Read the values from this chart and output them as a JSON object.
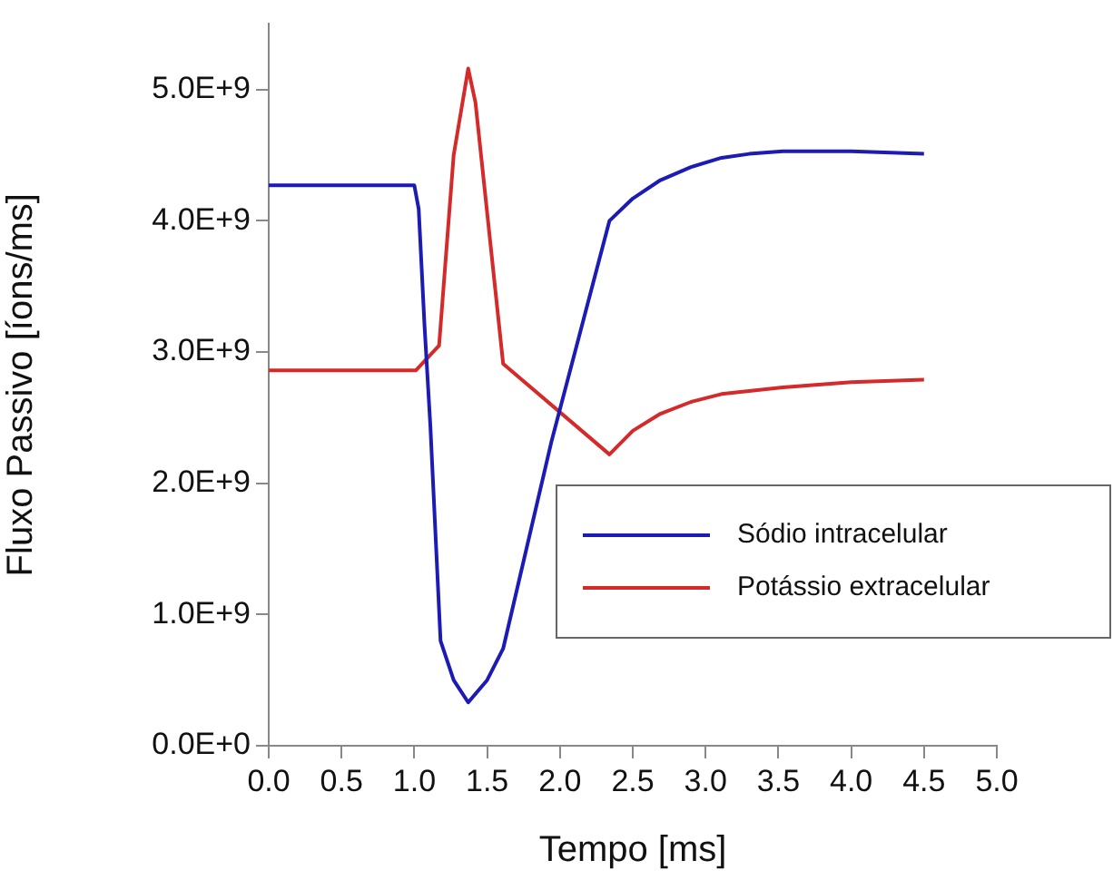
{
  "chart_data": {
    "type": "line",
    "xlabel": "Tempo [ms]",
    "ylabel": "Fluxo Passivo [íons/ms]",
    "xlim": [
      0,
      5
    ],
    "xticks": [
      {
        "value": 0,
        "label": "0.0"
      },
      0.5,
      {
        "value": 1,
        "label": "1.0"
      },
      1.5,
      {
        "value": 2,
        "label": "2.0"
      },
      2.5,
      {
        "value": 3,
        "label": "3.0"
      },
      3.5,
      {
        "value": 4,
        "label": "4.0"
      },
      4.5,
      {
        "value": 5,
        "label": "5.0"
      }
    ],
    "ylim": [
      0,
      5500000000.0
    ],
    "yticks": [
      {
        "value": 0,
        "label": "0.0E+0"
      },
      {
        "value": 1000000000.0,
        "label": "1.0E+9"
      },
      {
        "value": 2000000000.0,
        "label": "2.0E+9"
      },
      {
        "value": 3000000000.0,
        "label": "3.0E+9"
      },
      {
        "value": 4000000000.0,
        "label": "4.0E+9"
      },
      {
        "value": 5000000000.0,
        "label": "5.0E+9"
      }
    ],
    "grid": false,
    "legend": "bottom right",
    "marker": "none",
    "line_style": "solid",
    "series": [
      {
        "name": "Sódio intracelular",
        "color": "#1c1cb4",
        "x": [
          0,
          1.0,
          1.03,
          1.07,
          1.11,
          1.18,
          1.27,
          1.37,
          1.5,
          1.61,
          1.94,
          2.34,
          2.5,
          2.69,
          2.9,
          3.11,
          3.3,
          3.53,
          4.0,
          4.5
        ],
        "values": [
          4270000000.0,
          4270000000.0,
          4090000000.0,
          3200000000.0,
          2440000000.0,
          800000000.0,
          500000000.0,
          330000000.0,
          500000000.0,
          740000000.0,
          2310000000.0,
          4000000000.0,
          4170000000.0,
          4310000000.0,
          4410000000.0,
          4480000000.0,
          4510000000.0,
          4530000000.0,
          4530000000.0,
          4510000000.0
        ]
      },
      {
        "name": "Potássio extracelular",
        "color": "#d42a2a",
        "x": [
          0,
          1.01,
          1.17,
          1.27,
          1.37,
          1.42,
          1.61,
          2.34,
          2.5,
          2.69,
          2.9,
          3.11,
          3.53,
          4.0,
          4.5
        ],
        "values": [
          2860000000.0,
          2860000000.0,
          3050000000.0,
          4500000000.0,
          5160000000.0,
          4900000000.0,
          2910000000.0,
          2220000000.0,
          2400000000.0,
          2530000000.0,
          2620000000.0,
          2680000000.0,
          2730000000.0,
          2770000000.0,
          2790000000.0
        ]
      }
    ]
  }
}
